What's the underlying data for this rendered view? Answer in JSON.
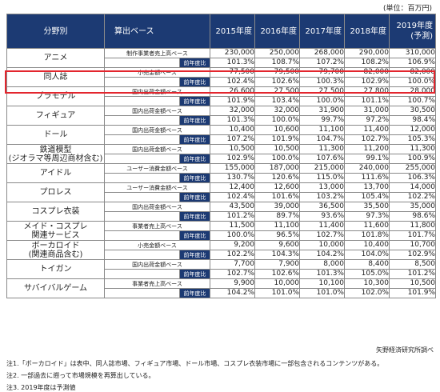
{
  "unit_note": "(単位：百万円)",
  "headers": {
    "category": "分野別",
    "base": "算出ベース",
    "years": [
      "2015年度",
      "2016年度",
      "2017年度",
      "2018年度"
    ],
    "forecast_year": "2019年度",
    "forecast_note": "(予測)"
  },
  "yoy_label": "前年度比",
  "rows": [
    {
      "category": [
        "アニメ"
      ],
      "base": "制作事業者売上高ベース",
      "values": [
        "230,000",
        "250,000",
        "268,000",
        "290,000",
        "310,000"
      ],
      "yoy": [
        "101.3%",
        "108.7%",
        "107.2%",
        "108.2%",
        "106.9%"
      ]
    },
    {
      "category": [
        "同人誌"
      ],
      "base": "小売金額ベース",
      "values": [
        "77,500",
        "79,500",
        "79,700",
        "82,000",
        "82,000"
      ],
      "yoy": [
        "102.4%",
        "102.6%",
        "100.3%",
        "102.9%",
        "100.0%"
      ]
    },
    {
      "category": [
        "プラモデル"
      ],
      "base": "国内出荷金額ベース",
      "values": [
        "26,600",
        "27,500",
        "27,500",
        "27,800",
        "28,000"
      ],
      "yoy": [
        "101.9%",
        "103.4%",
        "100.0%",
        "101.1%",
        "100.7%"
      ]
    },
    {
      "category": [
        "フィギュア"
      ],
      "base": "国内出荷金額ベース",
      "values": [
        "32,000",
        "32,000",
        "31,900",
        "31,000",
        "30,500"
      ],
      "yoy": [
        "101.3%",
        "100.0%",
        "99.7%",
        "97.2%",
        "98.4%"
      ]
    },
    {
      "category": [
        "ドール"
      ],
      "base": "国内出荷金額ベース",
      "values": [
        "10,400",
        "10,600",
        "11,100",
        "11,400",
        "12,000"
      ],
      "yoy": [
        "107.2%",
        "101.9%",
        "104.7%",
        "102.7%",
        "105.3%"
      ]
    },
    {
      "category": [
        "鉄道模型",
        "(ジオラマ等周辺商材含む)"
      ],
      "base": "国内出荷金額ベース",
      "values": [
        "10,500",
        "10,500",
        "11,300",
        "11,200",
        "11,300"
      ],
      "yoy": [
        "102.9%",
        "100.0%",
        "107.6%",
        "99.1%",
        "100.9%"
      ]
    },
    {
      "category": [
        "アイドル"
      ],
      "base": "ユーザー消費金額ベース",
      "values": [
        "155,000",
        "187,000",
        "215,000",
        "240,000",
        "255,000"
      ],
      "yoy": [
        "130.7%",
        "120.6%",
        "115.0%",
        "111.6%",
        "106.3%"
      ]
    },
    {
      "category": [
        "プロレス"
      ],
      "base": "ユーザー消費金額ベース",
      "values": [
        "12,400",
        "12,600",
        "13,000",
        "13,700",
        "14,000"
      ],
      "yoy": [
        "102.4%",
        "101.6%",
        "103.2%",
        "105.4%",
        "102.2%"
      ]
    },
    {
      "category": [
        "コスプレ衣装"
      ],
      "base": "国内出荷金額ベース",
      "values": [
        "43,500",
        "39,000",
        "36,500",
        "35,500",
        "35,000"
      ],
      "yoy": [
        "101.2%",
        "89.7%",
        "93.6%",
        "97.3%",
        "98.6%"
      ]
    },
    {
      "category": [
        "メイド・コスプレ",
        "関連サービス"
      ],
      "base": "事業者売上高ベース",
      "values": [
        "11,500",
        "11,100",
        "11,400",
        "11,600",
        "11,800"
      ],
      "yoy": [
        "100.0%",
        "96.5%",
        "102.7%",
        "101.8%",
        "101.7%"
      ]
    },
    {
      "category": [
        "ボーカロイド",
        "(関連商品含む)"
      ],
      "base": "小売金額ベース",
      "values": [
        "9,200",
        "9,600",
        "10,000",
        "10,400",
        "10,700"
      ],
      "yoy": [
        "102.2%",
        "104.3%",
        "104.2%",
        "104.0%",
        "102.9%"
      ]
    },
    {
      "category": [
        "トイガン"
      ],
      "base": "国内出荷金額ベース",
      "values": [
        "7,700",
        "7,900",
        "8,000",
        "8,400",
        "8,500"
      ],
      "yoy": [
        "102.7%",
        "102.6%",
        "101.3%",
        "105.0%",
        "101.2%"
      ]
    },
    {
      "category": [
        "サバイバルゲーム"
      ],
      "base": "事業者売上高ベース",
      "values": [
        "9,900",
        "10,000",
        "10,100",
        "10,300",
        "10,500"
      ],
      "yoy": [
        "104.2%",
        "101.0%",
        "101.0%",
        "102.0%",
        "101.9%"
      ]
    }
  ],
  "source": "矢野経済研究所調べ",
  "notes": [
    "注1.「ボーカロイド」は表中、同人誌市場、フィギュア市場、ドール市場、コスプレ衣装市場に一部包含されるコンテンツがある。",
    "注2. 一部過去に遡って市場規模を再算出している。",
    "注3. 2019年度は予測値"
  ],
  "colors": {
    "header_bg": "#1c3a73",
    "header_text": "#ffffff",
    "highlight_border": "#e3262e",
    "grid": "#8a8a8a"
  }
}
